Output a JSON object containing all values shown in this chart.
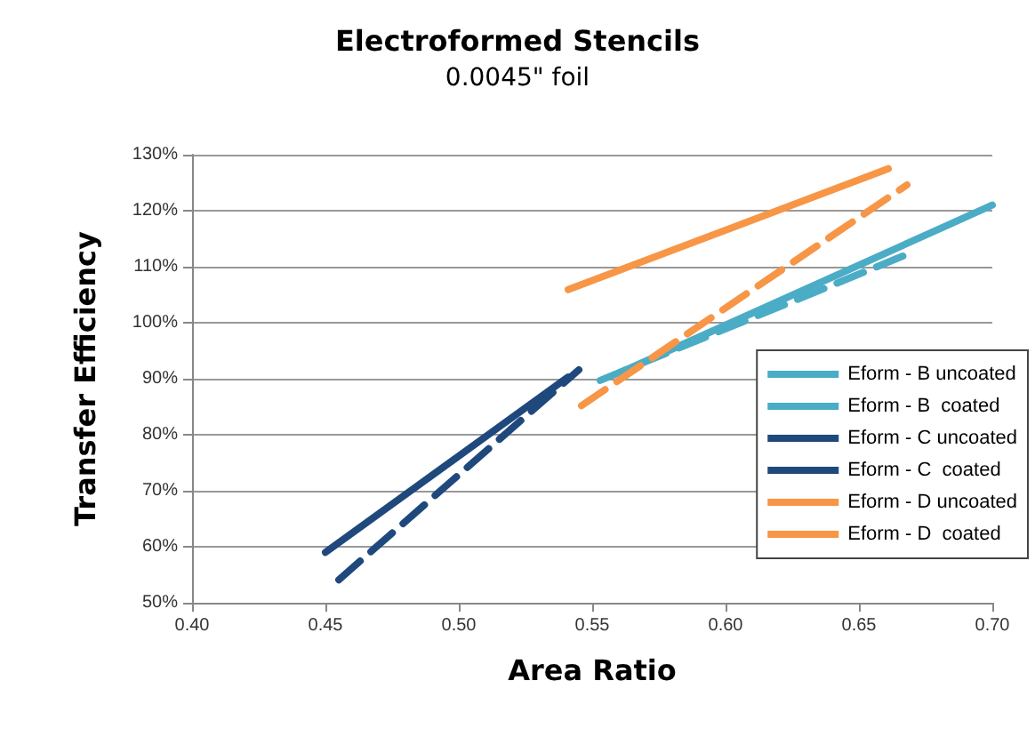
{
  "chart_data": {
    "type": "line",
    "title": "Electroformed Stencils",
    "subtitle": "0.0045\" foil",
    "xlabel": "Area Ratio",
    "ylabel": "Transfer Efficiency",
    "xlim": [
      0.4,
      0.7
    ],
    "xticks": [
      {
        "value": 0.4,
        "label": "0.40"
      },
      {
        "value": 0.45,
        "label": "0.45"
      },
      {
        "value": 0.5,
        "label": "0.50"
      },
      {
        "value": 0.55,
        "label": "0.55"
      },
      {
        "value": 0.6,
        "label": "0.60"
      },
      {
        "value": 0.65,
        "label": "0.65"
      },
      {
        "value": 0.7,
        "label": "0.70"
      }
    ],
    "ylim": [
      50,
      130
    ],
    "yticks": [
      {
        "value": 50,
        "label": "50%"
      },
      {
        "value": 60,
        "label": "60%"
      },
      {
        "value": 70,
        "label": "70%"
      },
      {
        "value": 80,
        "label": "80%"
      },
      {
        "value": 90,
        "label": "90%"
      },
      {
        "value": 100,
        "label": "100%"
      },
      {
        "value": 110,
        "label": "110%"
      },
      {
        "value": 120,
        "label": "120%"
      },
      {
        "value": 130,
        "label": "130%"
      }
    ],
    "grid": "y",
    "legend": "right",
    "marker": "none",
    "series": [
      {
        "name": "Eform - B uncoated",
        "color": "#4bacc6",
        "line_style": "dashed",
        "x": [
          0.553,
          0.668
        ],
        "values": [
          89.7,
          112.2
        ]
      },
      {
        "name": "Eform - B  coated",
        "color": "#4bacc6",
        "line_style": "solid",
        "x": [
          0.56,
          0.7
        ],
        "values": [
          91,
          121
        ]
      },
      {
        "name": "Eform - C uncoated",
        "color": "#1f497d",
        "line_style": "solid",
        "x": [
          0.45,
          0.541
        ],
        "values": [
          59,
          90.3
        ]
      },
      {
        "name": "Eform - C  coated",
        "color": "#1f497d",
        "line_style": "dashed",
        "x": [
          0.455,
          0.545
        ],
        "values": [
          54.1,
          91.6
        ]
      },
      {
        "name": "Eform - D uncoated",
        "color": "#f79646",
        "line_style": "solid",
        "x": [
          0.541,
          0.661
        ],
        "values": [
          105.9,
          127.5
        ]
      },
      {
        "name": "Eform - D  coated",
        "color": "#f79646",
        "line_style": "dashed",
        "x": [
          0.546,
          0.668
        ],
        "values": [
          85.2,
          124.6
        ]
      }
    ]
  }
}
